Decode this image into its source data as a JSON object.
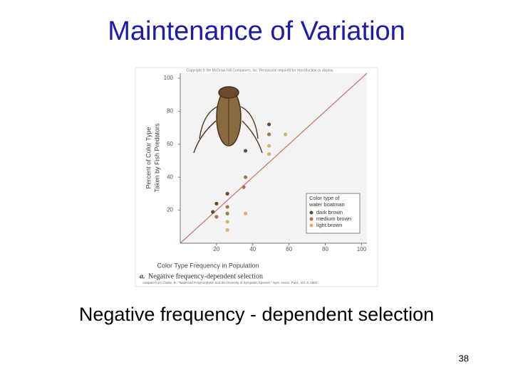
{
  "slide_title": "Maintenance of Variation",
  "caption": "Negative frequency - dependent selection",
  "page_number": "38",
  "chart_data": {
    "type": "scatter",
    "copyright": "Copyright © the McGraw-Hill Companies, Inc. Permission required for reproduction or display.",
    "xlabel": "Color Type Frequency in Population",
    "ylabel": [
      "Percent of Color Type",
      "Taken by Fish Predators"
    ],
    "panel_label": "a.",
    "panel_title": "Negative frequency-dependent selection",
    "source": "Adapted from Clarke, B.: \"Balanced Polymorphism and the Diversity of Sympatric Species.\" Syst. Assoc. Publ., Vol. 4, 1962",
    "legend_title": [
      "Color type of",
      "water boatman"
    ],
    "legend": "lower right",
    "xlim": [
      0,
      103
    ],
    "ylim": [
      0,
      103
    ],
    "xticks": [
      20,
      40,
      60,
      80,
      100
    ],
    "yticks": [
      20,
      40,
      60,
      80,
      100
    ],
    "series": [
      {
        "name": "dark brown",
        "color": "#6b4a2e",
        "x": [
          18,
          20,
          26,
          36,
          49
        ],
        "values": [
          19,
          24,
          30,
          56,
          72
        ]
      },
      {
        "name": "medium brown",
        "color": "#a07850",
        "x": [
          20,
          26,
          26,
          36,
          35,
          49
        ],
        "values": [
          16,
          22,
          18,
          40,
          34,
          66
        ]
      },
      {
        "name": "light brown",
        "color": "#d9b468",
        "x": [
          26,
          26,
          36,
          49,
          49,
          58
        ],
        "values": [
          13,
          8,
          18,
          59,
          54,
          66
        ]
      }
    ]
  }
}
